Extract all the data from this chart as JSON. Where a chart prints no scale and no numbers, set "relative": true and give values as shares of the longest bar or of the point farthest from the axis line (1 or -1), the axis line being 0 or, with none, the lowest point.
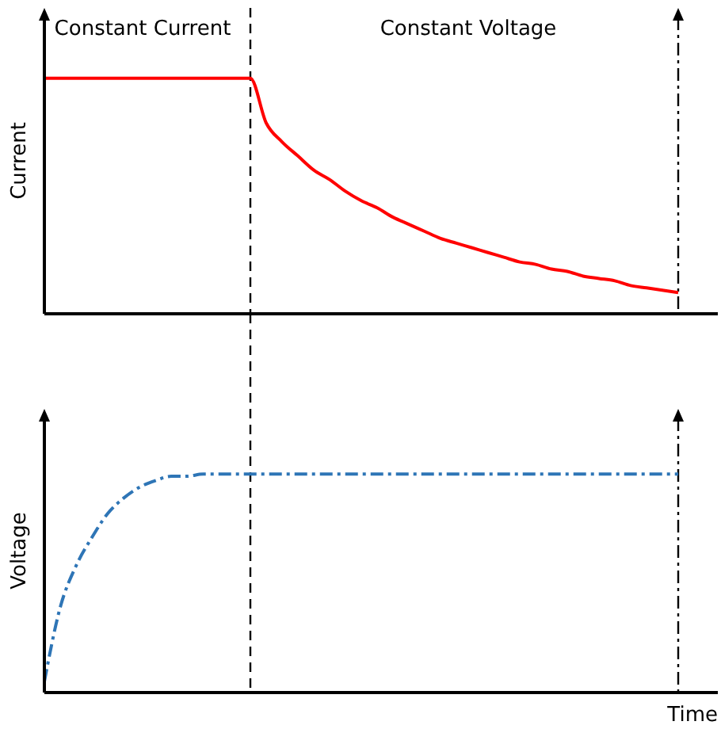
{
  "chart_data": [
    {
      "type": "line",
      "relative": true,
      "ylabel": "Current",
      "categories": [
        null,
        null,
        null,
        null,
        null,
        null,
        null,
        null,
        null,
        null,
        null,
        null,
        null,
        null,
        null,
        null,
        null,
        null,
        null,
        null,
        null,
        null,
        null,
        null,
        null,
        null,
        null,
        null,
        null,
        null,
        null,
        null,
        null,
        null,
        null,
        null,
        null,
        null,
        null,
        null,
        null
      ],
      "series": [
        {
          "color": "#ff0000",
          "line_style": "solid",
          "values": [
            1,
            1,
            1,
            1,
            1,
            1,
            1,
            1,
            1,
            1,
            1,
            1,
            1,
            1,
            0.81,
            0.73,
            0.67,
            0.61,
            0.57,
            0.52,
            0.48,
            0.45,
            0.41,
            0.38,
            0.35,
            0.32,
            0.3,
            0.28,
            0.26,
            0.24,
            0.22,
            0.21,
            0.19,
            0.18,
            0.16,
            0.15,
            0.14,
            0.12,
            0.11,
            0.1,
            0.09
          ]
        }
      ],
      "annotations": [
        "Constant Current",
        "Constant Voltage"
      ],
      "marker": "none"
    },
    {
      "type": "line",
      "relative": true,
      "ylabel": "Voltage",
      "xlabel": "Time",
      "categories": [
        null,
        null,
        null,
        null,
        null,
        null,
        null,
        null,
        null,
        null,
        null,
        null,
        null,
        null,
        null,
        null,
        null,
        null,
        null,
        null,
        null,
        null,
        null,
        null,
        null,
        null,
        null,
        null,
        null,
        null,
        null,
        null,
        null,
        null,
        null,
        null,
        null,
        null,
        null,
        null,
        null
      ],
      "series": [
        {
          "color": "#2e75b6",
          "line_style": "dashdot",
          "values": [
            0.05,
            0.39,
            0.58,
            0.71,
            0.82,
            0.89,
            0.94,
            0.97,
            0.99,
            0.99,
            1,
            1,
            1,
            1,
            1,
            1,
            1,
            1,
            1,
            1,
            1,
            1,
            1,
            1,
            1,
            1,
            1,
            1,
            1,
            1,
            1,
            1,
            1,
            1,
            1,
            1,
            1,
            1,
            1,
            1,
            1
          ]
        }
      ],
      "marker": "none"
    }
  ]
}
